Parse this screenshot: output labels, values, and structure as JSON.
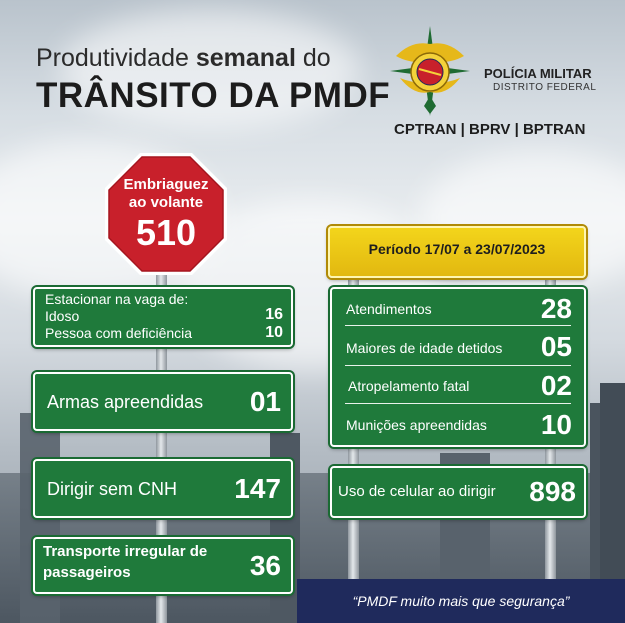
{
  "header": {
    "title_prefix": "Produtividade ",
    "title_bold": "semanal",
    "title_suffix": " do",
    "title_main": "TRÂNSITO DA PMDF",
    "org_name": "POLÍCIA MILITAR",
    "org_sub": "DISTRITO FEDERAL",
    "units": "CPTRAN | BPRV | BPTRAN"
  },
  "stop_sign": {
    "label_line1": "Embriaguez",
    "label_line2": "ao volante",
    "value": "510"
  },
  "period": "Período 17/07 a 23/07/2023",
  "left_signs": {
    "parking": {
      "title": "Estacionar na vaga de:",
      "rows": [
        {
          "label": "Idoso",
          "value": "16"
        },
        {
          "label": "Pessoa com deficiência",
          "value": "10"
        }
      ]
    },
    "weapons": {
      "label": "Armas apreendidas",
      "value": "01"
    },
    "no_license": {
      "label": "Dirigir sem CNH",
      "value": "147"
    },
    "transport": {
      "label_line1": "Transporte irregular de",
      "label_line2": "passageiros",
      "value": "36"
    }
  },
  "right_sign": {
    "rows": [
      {
        "label": "Atendimentos",
        "value": "28"
      },
      {
        "label": "Maiores de idade detidos",
        "value": "05"
      },
      {
        "label": "Atropelamento fatal",
        "value": "02"
      },
      {
        "label": "Munições apreendidas",
        "value": "10"
      }
    ]
  },
  "phone_sign": {
    "label": "Uso de celular ao dirigir",
    "value": "898"
  },
  "footer": {
    "slogan": "“PMDF muito mais que segurança”"
  },
  "colors": {
    "sign_green": "#1f7a3b",
    "stop_red": "#c8202b",
    "period_yellow": "#f0cc17",
    "footer_navy": "#1f2a5c"
  }
}
